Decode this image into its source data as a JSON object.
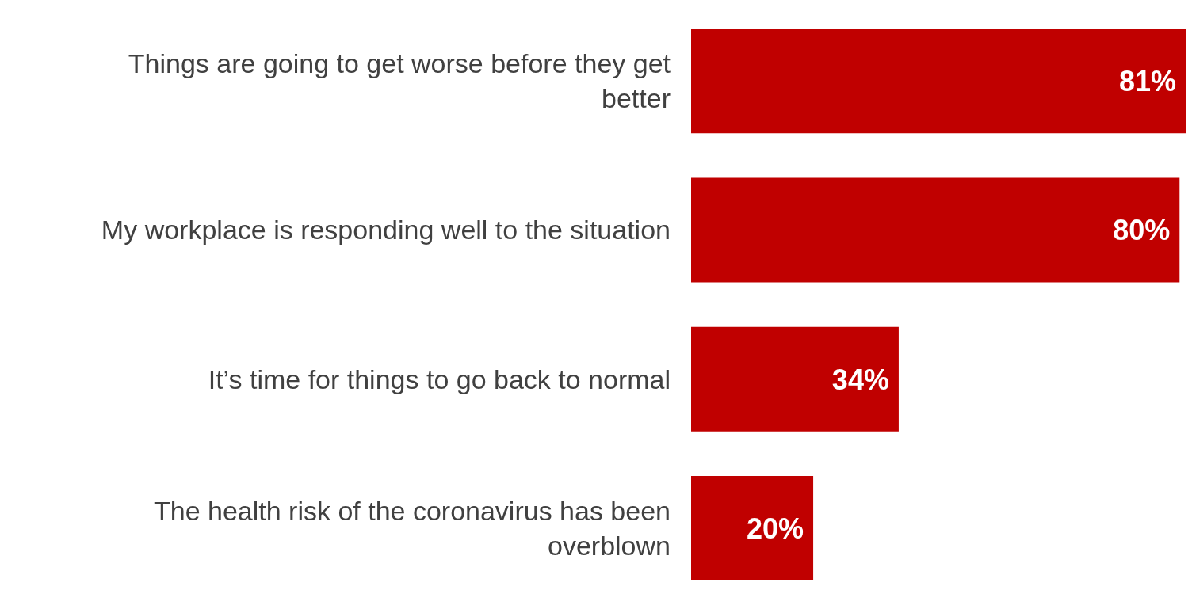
{
  "chart_data": {
    "type": "bar",
    "orientation": "horizontal",
    "categories": [
      "Things are going to get worse before they get better",
      "My workplace is responding well to the situation",
      "It’s time for things to go back to normal",
      "The health risk of the coronavirus has been overblown"
    ],
    "values": [
      81,
      80,
      34,
      20
    ],
    "value_labels": [
      "81%",
      "80%",
      "34%",
      "20%"
    ],
    "color": "#c00000",
    "grid": false,
    "legend": false
  }
}
